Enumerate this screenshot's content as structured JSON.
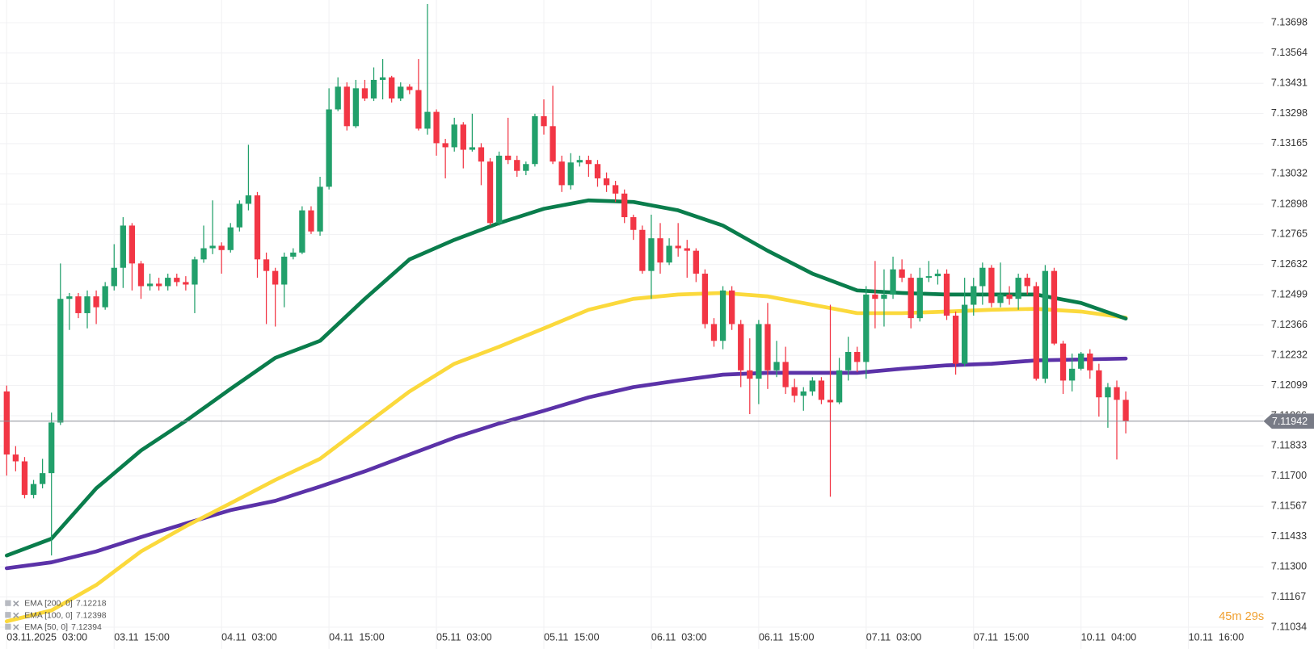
{
  "chart_data": {
    "type": "candlestick",
    "up_color": "#22a06b",
    "down_color": "#f23645",
    "xlim": [
      -0.75,
      140.38
    ],
    "xticks": [
      {
        "value": 0,
        "label": "03.11.2025  03:00"
      },
      {
        "value": 12,
        "label": "03.11  15:00"
      },
      {
        "value": 24,
        "label": "04.11  03:00"
      },
      {
        "value": 36,
        "label": "04.11  15:00"
      },
      {
        "value": 48,
        "label": "05.11  03:00"
      },
      {
        "value": 60,
        "label": "05.11  15:00"
      },
      {
        "value": 72,
        "label": "06.11  03:00"
      },
      {
        "value": 84,
        "label": "06.11  15:00"
      },
      {
        "value": 96,
        "label": "07.11  03:00"
      },
      {
        "value": 108,
        "label": "07.11  15:00"
      },
      {
        "value": 120,
        "label": "10.11  04:00"
      },
      {
        "value": 132,
        "label": "10.11  16:00"
      }
    ],
    "ylim": [
      7.10938,
      7.13798
    ],
    "yticks": [
      7.11034,
      7.11167,
      {
        "value": 7.113,
        "label": "7.11300"
      },
      7.11433,
      7.11567,
      {
        "value": 7.117,
        "label": "7.11700"
      },
      7.11833,
      7.11966,
      7.12099,
      7.12232,
      7.12366,
      7.12499,
      7.12632,
      7.12765,
      7.12898,
      7.13032,
      7.13165,
      7.13298,
      7.13431,
      7.13564,
      7.13698
    ],
    "grid": true,
    "open": [
      7.12073,
      7.11795,
      7.11765,
      7.11617,
      7.11665,
      7.11713,
      7.11936,
      7.12481,
      7.12492,
      7.12418,
      7.12492,
      7.12444,
      7.12537,
      7.12618,
      7.12804,
      7.12637,
      7.12537,
      7.12548,
      7.12537,
      7.12574,
      7.12555,
      7.12544,
      7.12655,
      7.12704,
      7.12715,
      7.12696,
      7.12796,
      7.129,
      7.12937,
      7.12655,
      7.12604,
      7.12544,
      7.12667,
      7.12685,
      7.12871,
      7.12778,
      7.12975,
      7.13316,
      7.13416,
      7.13242,
      7.13409,
      7.13364,
      7.13446,
      7.13457,
      7.13364,
      7.13416,
      7.13401,
      7.13231,
      7.13305,
      7.13167,
      7.13149,
      7.13249,
      7.13138,
      7.13149,
      7.13086,
      7.12815,
      7.13112,
      7.13093,
      7.13045,
      7.13075,
      7.13286,
      7.13242,
      7.13086,
      7.12982,
      7.13082,
      7.13093,
      7.13075,
      7.13012,
      7.12982,
      7.12945,
      7.12841,
      7.12785,
      7.12604,
      7.12748,
      7.12641,
      7.12715,
      7.12704,
      7.12693,
      7.12592,
      7.1237,
      7.12296,
      7.12518,
      7.1237,
      7.12166,
      7.12129,
      7.1237,
      7.12166,
      7.12203,
      7.12092,
      7.12054,
      7.12073,
      7.12121,
      7.12036,
      7.12025,
      7.12166,
      7.12247,
      7.12203,
      7.125,
      7.12481,
      7.125,
      7.12611,
      7.12574,
      7.12396,
      7.12574,
      7.12581,
      7.12592,
      7.12407,
      7.12195,
      7.12455,
      7.12537,
      7.12618,
      7.12463,
      7.125,
      7.12481,
      7.12574,
      7.12537,
      7.12129,
      7.12604,
      7.12284,
      7.12121,
      7.12173,
      7.1224,
      7.12166,
      7.12047,
      7.12092,
      7.12036
    ],
    "high": [
      7.12099,
      7.11832,
      7.11784,
      7.11683,
      7.11776,
      7.1198,
      7.12637,
      7.12507,
      7.12507,
      7.12518,
      7.12518,
      7.12555,
      7.12722,
      7.12841,
      7.12815,
      7.12648,
      7.12592,
      7.12574,
      7.12592,
      7.12592,
      7.12581,
      7.12667,
      7.12804,
      7.12915,
      7.1273,
      7.12815,
      7.12915,
      7.1316,
      7.12952,
      7.12685,
      7.12618,
      7.12685,
      7.12704,
      7.12889,
      7.12889,
      7.13019,
      7.13409,
      7.13457,
      7.13435,
      7.13446,
      7.13446,
      7.13501,
      7.13538,
      7.13464,
      7.13435,
      7.13427,
      7.13538,
      7.1378,
      7.13316,
      7.13186,
      7.13279,
      7.1326,
      7.13297,
      7.13167,
      7.13101,
      7.1313,
      7.13279,
      7.13112,
      7.13086,
      7.13297,
      7.1336,
      7.1342,
      7.13112,
      7.13123,
      7.13112,
      7.13112,
      7.13093,
      7.13038,
      7.13001,
      7.12963,
      7.12852,
      7.12804,
      7.12852,
      7.12815,
      7.12748,
      7.12815,
      7.12741,
      7.12704,
      7.12611,
      7.12396,
      7.12537,
      7.12537,
      7.12388,
      7.12307,
      7.12388,
      7.12463,
      7.12296,
      7.1227,
      7.12129,
      7.12092,
      7.12136,
      7.12136,
      7.12455,
      7.12221,
      7.12314,
      7.1227,
      7.12537,
      7.12648,
      7.12611,
      7.12667,
      7.12655,
      7.12592,
      7.12618,
      7.12648,
      7.12611,
      7.12611,
      7.12425,
      7.12574,
      7.12574,
      7.12641,
      7.1263,
      7.12641,
      7.12537,
      7.12592,
      7.12592,
      7.12555,
      7.1263,
      7.12618,
      7.12296,
      7.1224,
      7.12247,
      7.12259,
      7.12195,
      7.1211,
      7.12121,
      7.12073
    ],
    "low": [
      7.11702,
      7.11721,
      7.11602,
      7.11602,
      7.11646,
      7.1135,
      7.11925,
      7.12344,
      7.12396,
      7.12351,
      7.1237,
      7.12433,
      7.12518,
      7.12529,
      7.12518,
      7.12481,
      7.12518,
      7.12518,
      7.12518,
      7.12537,
      7.12518,
      7.12418,
      7.1264,
      7.12678,
      7.12592,
      7.12685,
      7.12778,
      7.12871,
      7.12574,
      7.1237,
      7.12359,
      7.12444,
      7.12655,
      7.12678,
      7.12767,
      7.12759,
      7.12963,
      7.13308,
      7.13223,
      7.13234,
      7.13353,
      7.13353,
      7.1336,
      7.13346,
      7.13353,
      7.13383,
      7.13223,
      7.13205,
      7.13112,
      7.13012,
      7.1313,
      7.13056,
      7.1313,
      7.12982,
      7.12804,
      7.12804,
      7.13075,
      7.13019,
      7.13026,
      7.13064,
      7.13205,
      7.13075,
      7.12952,
      7.12963,
      7.13064,
      7.13019,
      7.12975,
      7.12952,
      7.12908,
      7.12815,
      7.12741,
      7.12592,
      7.12481,
      7.12592,
      7.1263,
      7.12667,
      7.12574,
      7.12555,
      7.12351,
      7.1227,
      7.12259,
      7.12344,
      7.12092,
      7.11973,
      7.12017,
      7.12084,
      7.12136,
      7.12062,
      7.12025,
      7.11988,
      7.12054,
      7.12017,
      7.11609,
      7.12017,
      7.12121,
      7.12158,
      7.12129,
      7.12351,
      7.12359,
      7.12481,
      7.12555,
      7.12351,
      7.12381,
      7.12555,
      7.12544,
      7.12388,
      7.12147,
      7.12184,
      7.12407,
      7.12455,
      7.12444,
      7.12444,
      7.12455,
      7.12433,
      7.125,
      7.12121,
      7.1211,
      7.12277,
      7.12062,
      7.12073,
      7.12166,
      7.12129,
      7.11962,
      7.11913,
      7.11773,
      7.11888
    ],
    "close": [
      7.11795,
      7.11765,
      7.11617,
      7.11665,
      7.11713,
      7.11936,
      7.12481,
      7.12492,
      7.12418,
      7.12492,
      7.12444,
      7.12537,
      7.12618,
      7.12804,
      7.12637,
      7.12537,
      7.12548,
      7.12537,
      7.12574,
      7.12555,
      7.12544,
      7.12655,
      7.12704,
      7.12715,
      7.12696,
      7.12796,
      7.129,
      7.12937,
      7.12655,
      7.12604,
      7.12544,
      7.12667,
      7.12685,
      7.12871,
      7.12778,
      7.12975,
      7.13316,
      7.13416,
      7.13242,
      7.13409,
      7.13364,
      7.13446,
      7.13457,
      7.13364,
      7.13416,
      7.13401,
      7.13231,
      7.13305,
      7.13167,
      7.13149,
      7.13249,
      7.13138,
      7.13149,
      7.13086,
      7.12815,
      7.13112,
      7.13093,
      7.13045,
      7.13075,
      7.13286,
      7.13242,
      7.13086,
      7.12982,
      7.13082,
      7.13093,
      7.13075,
      7.13012,
      7.12982,
      7.12945,
      7.12841,
      7.12785,
      7.12604,
      7.12748,
      7.12641,
      7.12715,
      7.12704,
      7.12693,
      7.12592,
      7.1237,
      7.12296,
      7.12518,
      7.1237,
      7.12166,
      7.12129,
      7.1237,
      7.12166,
      7.12203,
      7.12092,
      7.12054,
      7.12073,
      7.12121,
      7.12036,
      7.12025,
      7.12166,
      7.12247,
      7.12203,
      7.125,
      7.12481,
      7.125,
      7.12611,
      7.12574,
      7.12396,
      7.12574,
      7.12581,
      7.12592,
      7.12407,
      7.12195,
      7.12455,
      7.12537,
      7.12618,
      7.12463,
      7.125,
      7.12481,
      7.12574,
      7.12537,
      7.12129,
      7.12604,
      7.12284,
      7.12121,
      7.12173,
      7.1224,
      7.12166,
      7.12047,
      7.12092,
      7.12036,
      7.11942
    ],
    "series": [
      {
        "name": "EMA [200, 0]",
        "color": "#5b32a8",
        "x": [
          0,
          5,
          10,
          15,
          20,
          25,
          30,
          35,
          40,
          45,
          50,
          55,
          60,
          65,
          70,
          75,
          80,
          85,
          90,
          95,
          100,
          105,
          110,
          115,
          120,
          125
        ],
        "values": [
          7.11294,
          7.1132,
          7.11368,
          7.11431,
          7.11491,
          7.1155,
          7.11591,
          7.11654,
          7.11721,
          7.11795,
          7.11869,
          7.11932,
          7.11988,
          7.12047,
          7.12092,
          7.12121,
          7.12147,
          7.12155,
          7.12155,
          7.12155,
          7.12173,
          7.12188,
          7.12195,
          7.1221,
          7.12214,
          7.12218
        ]
      },
      {
        "name": "EMA [100, 0]",
        "color": "#fbd93c",
        "x": [
          0,
          5,
          10,
          15,
          20,
          25,
          30,
          35,
          40,
          45,
          50,
          55,
          60,
          65,
          70,
          75,
          80,
          85,
          90,
          95,
          100,
          105,
          110,
          115,
          120,
          125
        ],
        "values": [
          7.1106,
          7.11108,
          7.1122,
          7.11368,
          7.11479,
          7.1158,
          7.11683,
          7.11776,
          7.11925,
          7.12073,
          7.12195,
          7.1227,
          7.12351,
          7.12433,
          7.12481,
          7.125,
          7.12507,
          7.12492,
          7.12455,
          7.12418,
          7.12418,
          7.12425,
          7.12433,
          7.12437,
          7.12425,
          7.12398
        ]
      },
      {
        "name": "EMA [50, 0]",
        "color": "#0a7d4c",
        "x": [
          0,
          5,
          10,
          15,
          20,
          25,
          30,
          35,
          40,
          45,
          50,
          55,
          60,
          65,
          70,
          75,
          80,
          85,
          90,
          95,
          100,
          105,
          110,
          115,
          120,
          125
        ],
        "values": [
          7.1135,
          7.11424,
          7.11646,
          7.11813,
          7.11943,
          7.12084,
          7.12221,
          7.12296,
          7.12481,
          7.12655,
          7.12741,
          7.12815,
          7.12878,
          7.12915,
          7.12908,
          7.12871,
          7.12804,
          7.12693,
          7.12592,
          7.12518,
          7.12507,
          7.125,
          7.125,
          7.125,
          7.12463,
          7.12394
        ]
      }
    ],
    "current_price": 7.11942,
    "countdown": "45m 29s"
  }
}
